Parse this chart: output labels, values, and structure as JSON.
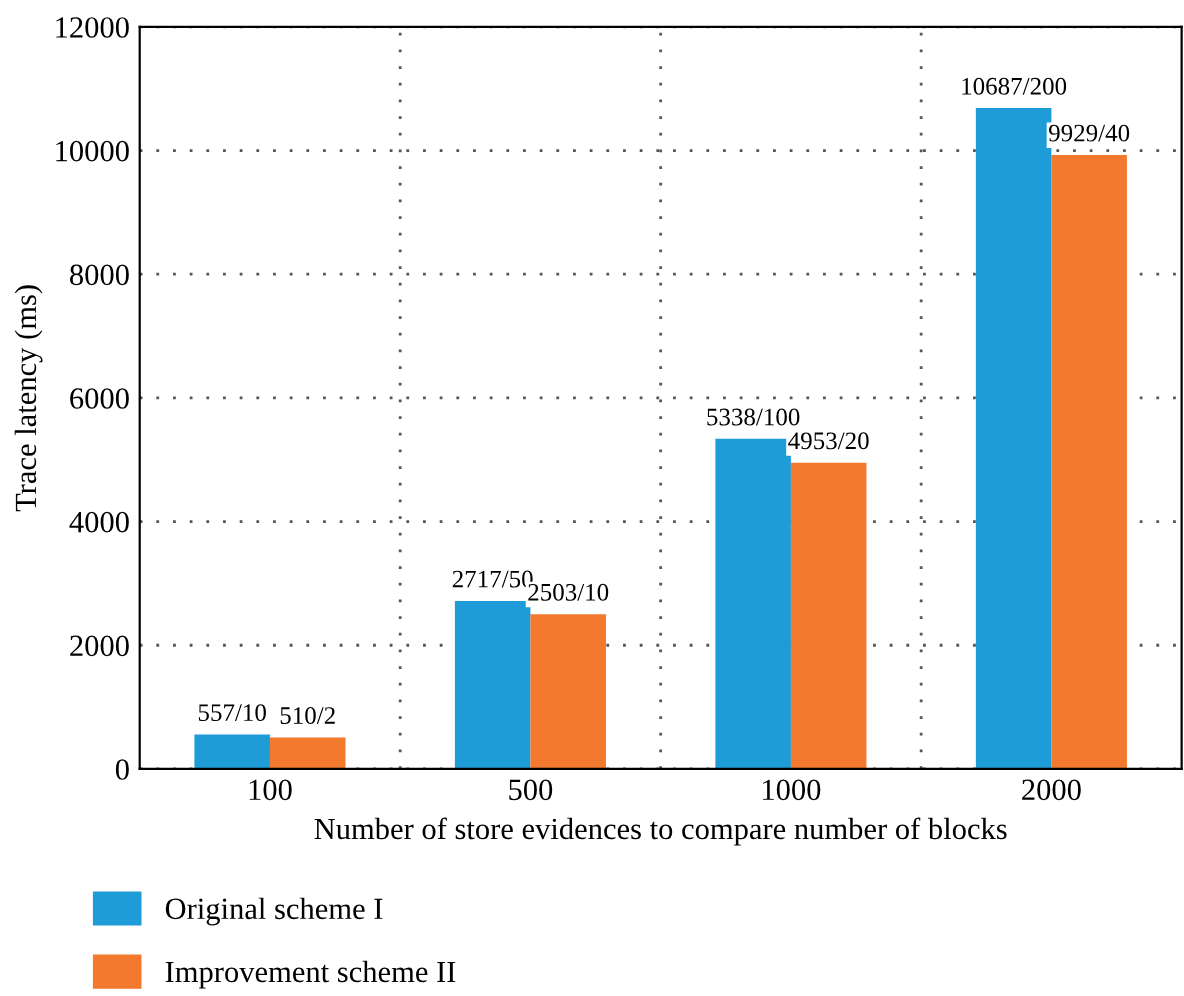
{
  "chart_data": {
    "type": "bar",
    "xlabel": "Number of store evidences to compare number of blocks",
    "ylabel": "Trace latency (ms)",
    "categories": [
      "100",
      "500",
      "1000",
      "2000"
    ],
    "series": [
      {
        "name": "Original scheme I",
        "color": "#1e9cd7",
        "values": [
          557,
          2717,
          5338,
          10687
        ],
        "value_labels": [
          "557/10",
          "2717/50",
          "5338/100",
          "10687/200"
        ]
      },
      {
        "name": "Improvement scheme II",
        "color": "#f2792e",
        "values": [
          510,
          2503,
          4953,
          9929
        ],
        "value_labels": [
          "510/2",
          "2503/10",
          "4953/20",
          "9929/40"
        ]
      }
    ],
    "ylim": [
      0,
      12000
    ],
    "yticks": [
      0,
      2000,
      4000,
      6000,
      8000,
      10000,
      12000
    ],
    "grid": true,
    "legend": "bottom"
  }
}
